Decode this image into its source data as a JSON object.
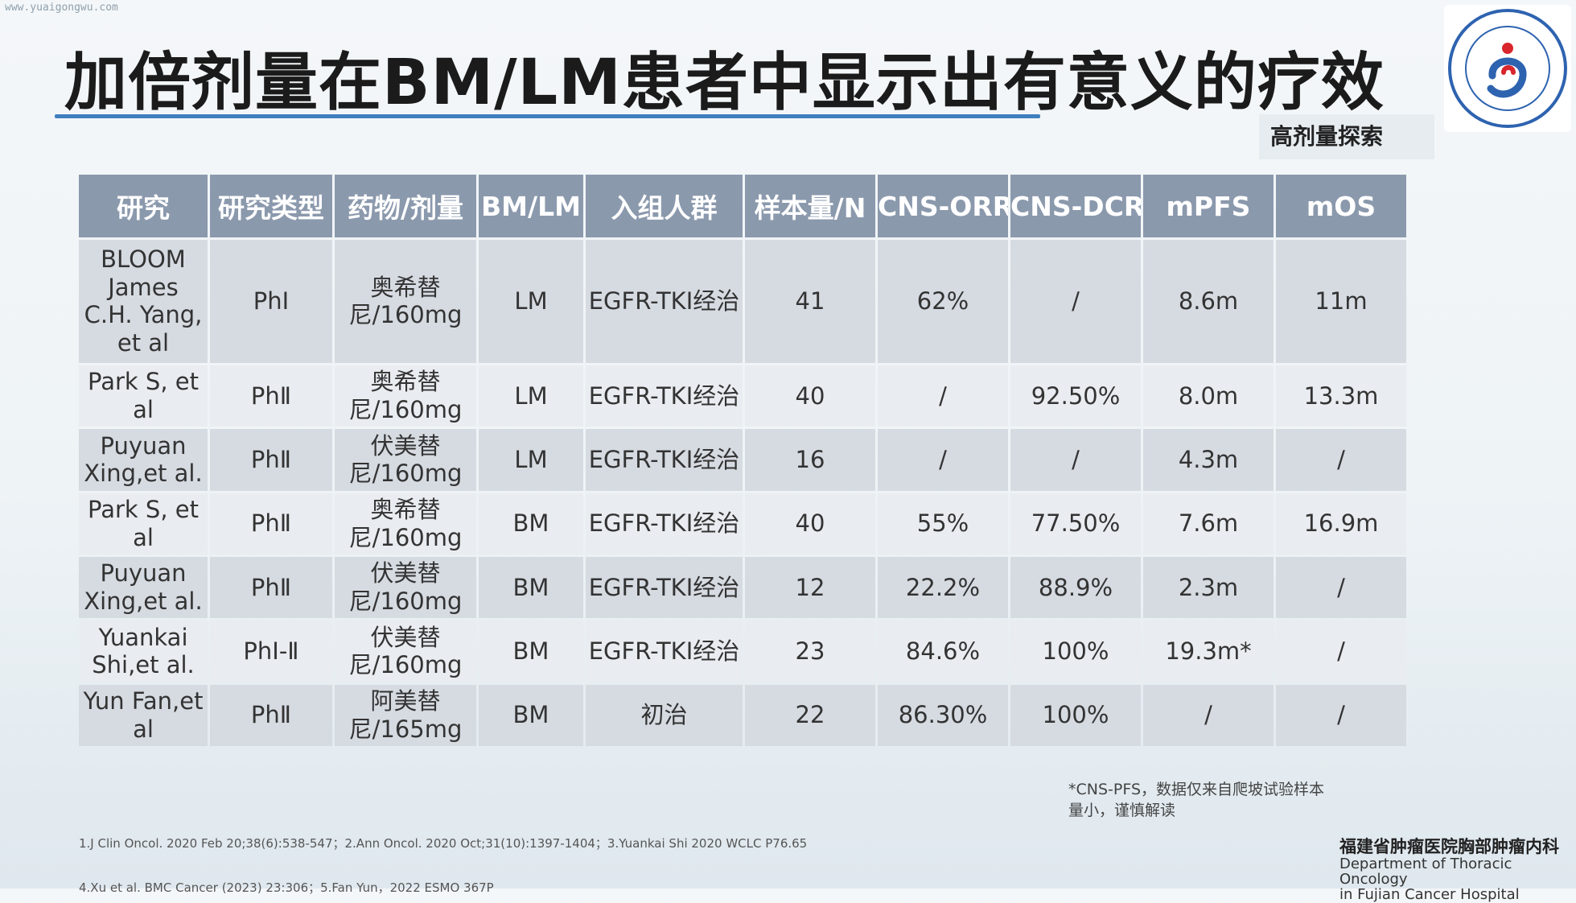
{
  "watermark": "www.yuaigongwu.com",
  "title": "加倍剂量在BM/LM患者中显示出有意义的疗效",
  "subtitle": "高剂量探索",
  "logo": {
    "text": "福建省肿瘤医院",
    "colors": {
      "ring": "#2e63b0",
      "accent": "#d8262c"
    }
  },
  "table": {
    "headers": [
      "研究",
      "研究类型",
      "药物/剂量",
      "BM/LM",
      "入组人群",
      "样本量/N",
      "CNS-ORR",
      "CNS-DCR",
      "mPFS",
      "mOS"
    ],
    "rows": [
      [
        "BLOOM James C.H. Yang, et al",
        "PhⅠ",
        "奥希替尼/160mg",
        "LM",
        "EGFR-TKI经治",
        "41",
        "62%",
        "/",
        "8.6m",
        "11m"
      ],
      [
        "Park S, et al",
        "PhⅡ",
        "奥希替尼/160mg",
        "LM",
        "EGFR-TKI经治",
        "40",
        "/",
        "92.50%",
        "8.0m",
        "13.3m"
      ],
      [
        "Puyuan Xing,et al.",
        "PhⅡ",
        "伏美替尼/160mg",
        "LM",
        "EGFR-TKI经治",
        "16",
        "/",
        "/",
        "4.3m",
        "/"
      ],
      [
        "Park S, et al",
        "PhⅡ",
        "奥希替尼/160mg",
        "BM",
        "EGFR-TKI经治",
        "40",
        "55%",
        "77.50%",
        "7.6m",
        "16.9m"
      ],
      [
        "Puyuan Xing,et al.",
        "PhⅡ",
        "伏美替尼/160mg",
        "BM",
        "EGFR-TKI经治",
        "12",
        "22.2%",
        "88.9%",
        "2.3m",
        "/"
      ],
      [
        "Yuankai Shi,et al.",
        "PhⅠ-Ⅱ",
        "伏美替尼/160mg",
        "BM",
        "EGFR-TKI经治",
        "23",
        "84.6%",
        "100%",
        "19.3m*",
        "/"
      ],
      [
        "Yun Fan,et al",
        "PhⅡ",
        "阿美替尼/165mg",
        "BM",
        "初治",
        "22",
        "86.30%",
        "100%",
        "/",
        "/"
      ]
    ]
  },
  "note": "*CNS-PFS，数据仅来自爬坡试验样本量小，谨慎解读",
  "references": {
    "line1": "1.J Clin Oncol. 2020 Feb 20;38(6):538-547；2.Ann Oncol. 2020 Oct;31(10):1397-1404；3.Yuankai Shi 2020 WCLC P76.65",
    "line2": "4.Xu et al. BMC Cancer (2023) 23:306；5.Fan Yun，2022 ESMO 367P"
  },
  "department": {
    "cn": "福建省肿瘤医院胸部肿瘤内科",
    "en1": "Department of Thoracic Oncology",
    "en2": "in Fujian Cancer Hospital"
  }
}
